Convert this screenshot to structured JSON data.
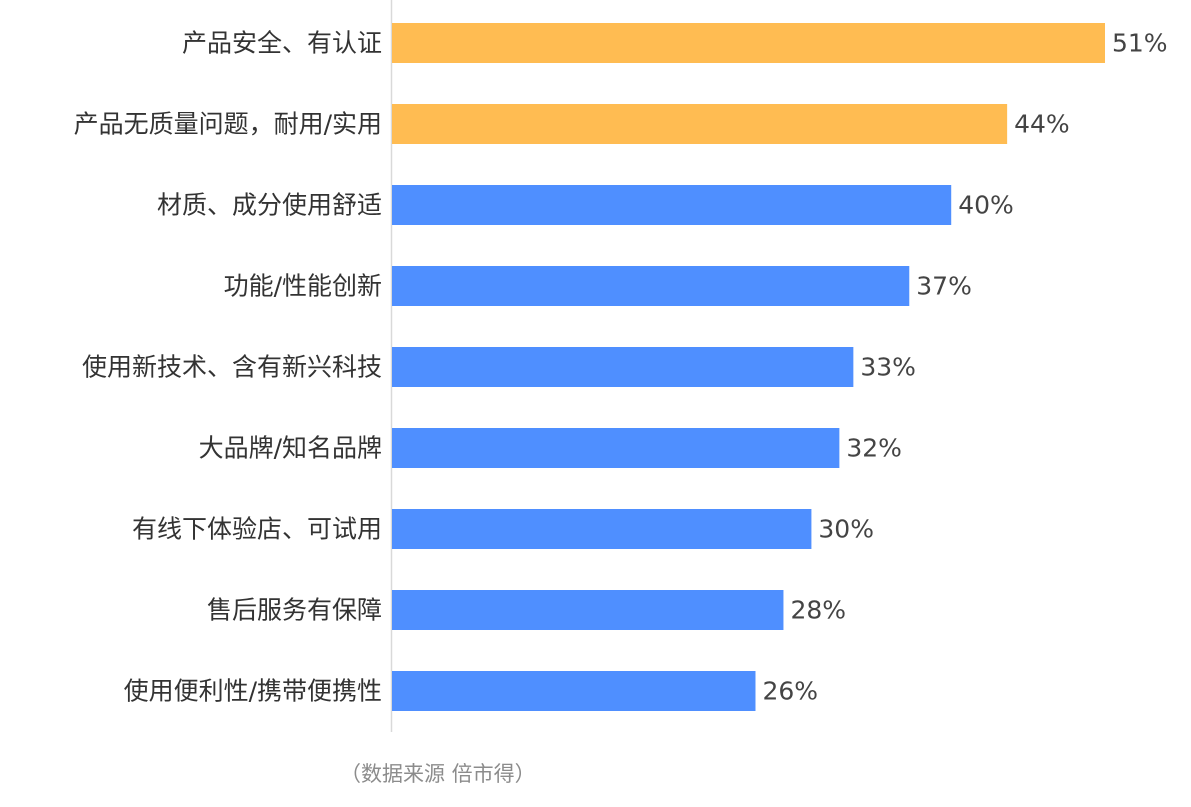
{
  "chart_data": {
    "type": "bar",
    "orientation": "horizontal",
    "categories": [
      "产品安全、有认证",
      "产品无质量问题，耐用/实用",
      "材质、成分使用舒适",
      "功能/性能创新",
      "使用新技术、含有新兴科技",
      "大品牌/知名品牌",
      "有线下体验店、可试用",
      "售后服务有保障",
      "使用便利性/携带便携性"
    ],
    "values": [
      51,
      44,
      40,
      37,
      33,
      32,
      30,
      28,
      26
    ],
    "value_labels": [
      "51%",
      "44%",
      "40%",
      "37%",
      "33%",
      "32%",
      "30%",
      "28%",
      "26%"
    ],
    "highlight": [
      true,
      true,
      false,
      false,
      false,
      false,
      false,
      false,
      false
    ],
    "colors": {
      "highlight": "#FFBC52",
      "default": "#4F8FFF",
      "axis": "#d9d9d9"
    },
    "xlim": [
      0,
      51
    ],
    "grid": false,
    "legend": "none",
    "source_note": "（数据来源  倍市得）"
  }
}
